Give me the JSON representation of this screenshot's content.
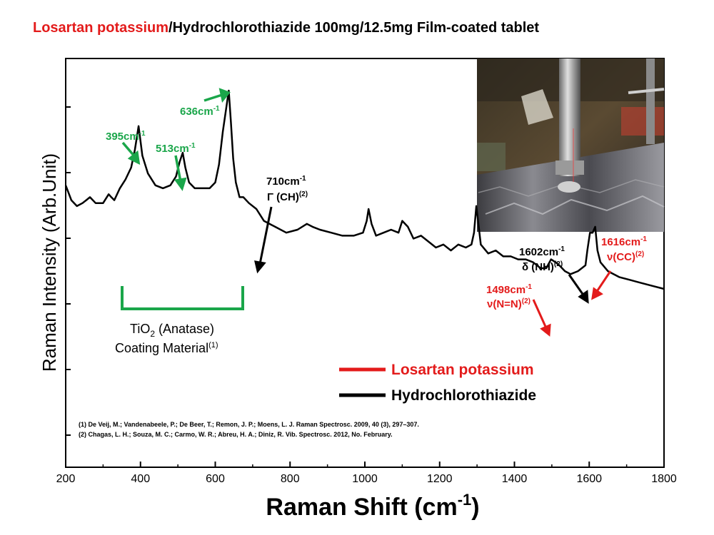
{
  "title": {
    "part1": "Losartan potassium",
    "part2": "/Hydrochlorothiazide 100mg/12.5mg Film-coated tablet"
  },
  "colors": {
    "losartan": "#e31b1b",
    "hctz": "#000000",
    "tio2": "#1aa64a"
  },
  "chart_data": {
    "type": "line",
    "title": "",
    "xlabel": "Raman Shift (cm-1)",
    "ylabel": "Raman Intensity (Arb.Unit)",
    "xlim": [
      200,
      1800
    ],
    "ylim": [
      0,
      100
    ],
    "xticks": [
      200,
      400,
      600,
      800,
      1000,
      1200,
      1400,
      1600,
      1800
    ],
    "grid": false,
    "legend_position": "lower-right",
    "legend": [
      {
        "name": "Losartan potassium",
        "color": "#e31b1b"
      },
      {
        "name": "Hydrochlorothiazide",
        "color": "#000000"
      }
    ],
    "series": [
      {
        "x": [
          200,
          215,
          230,
          245,
          255,
          265,
          280,
          300,
          315,
          322,
          330,
          345,
          360,
          375,
          385,
          395,
          405,
          420,
          440,
          460,
          480,
          495,
          505,
          513,
          520,
          530,
          545,
          565,
          585,
          600,
          610,
          620,
          628,
          636,
          642,
          648,
          655,
          665,
          675,
          690,
          710,
          730,
          760,
          790,
          820,
          845,
          860,
          880,
          910,
          940,
          970,
          995,
          1005,
          1010,
          1018,
          1030,
          1050,
          1070,
          1090,
          1100,
          1115,
          1130,
          1150,
          1170,
          1190,
          1210,
          1230,
          1250,
          1270,
          1285,
          1292,
          1298,
          1310,
          1330,
          1350,
          1370,
          1390,
          1410,
          1430,
          1450,
          1470,
          1485,
          1498,
          1510,
          1520,
          1535,
          1550,
          1570,
          1580,
          1590,
          1595,
          1602,
          1609,
          1616,
          1622,
          1630,
          1650,
          1680,
          1710,
          1740,
          1770,
          1800
        ],
        "y": [
          68,
          63,
          61,
          62,
          63,
          64,
          62,
          62,
          65,
          64,
          63,
          67,
          70,
          74,
          80,
          88,
          78,
          72,
          68,
          67,
          68,
          71,
          76,
          79,
          74,
          69,
          67,
          67,
          67,
          69,
          75,
          86,
          93,
          100,
          89,
          77,
          69,
          64,
          64,
          62,
          60,
          56,
          54,
          52,
          53,
          55,
          54,
          53,
          52,
          51,
          51,
          52,
          56,
          60,
          55,
          51,
          52,
          53,
          52,
          56,
          54,
          50,
          51,
          49,
          47,
          48,
          46,
          48,
          47,
          48,
          52,
          61,
          48,
          45,
          46,
          44,
          44,
          43,
          43,
          42,
          40,
          40,
          43,
          42,
          41,
          39,
          38,
          39,
          40,
          41,
          46,
          52,
          52,
          54,
          46,
          42,
          39,
          37,
          36,
          35,
          34,
          33
        ]
      }
    ],
    "annotations": [
      {
        "text": "395cm-1",
        "x": 395,
        "color": "green"
      },
      {
        "text": "513cm-1",
        "x": 513,
        "color": "green"
      },
      {
        "text": "636cm-1",
        "x": 636,
        "color": "green"
      },
      {
        "text": "710cm-1 Γ (CH)(2)",
        "x": 710,
        "color": "black"
      },
      {
        "text": "1498cm-1 ν(N=N)(2)",
        "x": 1498,
        "color": "red"
      },
      {
        "text": "1602cm-1 δ (NH)(2)",
        "x": 1602,
        "color": "black"
      },
      {
        "text": "1616cm-1 ν(CC)(2)",
        "x": 1616,
        "color": "red"
      },
      {
        "text": "TiO2 (Anatase) Coating Material(1)",
        "x": 510,
        "color": "green"
      }
    ]
  },
  "labels": {
    "peak395": "395cm",
    "peak513": "513cm",
    "peak636": "636cm",
    "sup_minus1": "-1",
    "peak710": "710cm",
    "gamma_ch": "Γ (CH)",
    "sup2": "(2)",
    "peak1498": "1498cm",
    "nu_nn": "ν(N=N)",
    "peak1602": "1602cm",
    "delta_nh": "δ (NH)",
    "peak1616": "1616cm",
    "nu_cc": "ν(CC)",
    "tio2_a": "TiO",
    "tio2_sub": "2",
    "tio2_b": " (Anatase)",
    "coating": "Coating Material",
    "sup1": "(1)",
    "ylabel": "Raman Intensity (Arb.Unit)",
    "xlabel_main": "Raman Shift (cm",
    "xlabel_sup": "-1",
    "xlabel_end": ")"
  },
  "references": [
    "(1)    De Veij, M.; Vandenabeele, P.; De Beer, T.; Remon, J. P.; Moens, L. J. Raman Spectrosc. 2009, 40 (3), 297–307.",
    "(2)    Chagas, L. H.; Souza, M. C.; Carmo, W. R.; Abreu, H. A.; Diniz, R. Vib. Spectrosc. 2012, No. February."
  ]
}
